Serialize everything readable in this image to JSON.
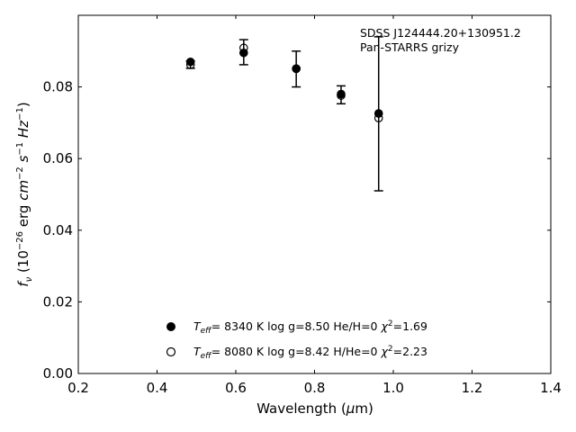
{
  "chart_data": {
    "type": "scatter",
    "xlabel": "Wavelength (μm)",
    "ylabel": "f_ν (10^-26 erg cm^-2 s^-1 Hz^-1)",
    "xlim": [
      0.2,
      1.4
    ],
    "ylim": [
      0.0,
      0.1
    ],
    "xticks": [
      0.2,
      0.4,
      0.6,
      0.8,
      1.0,
      1.2,
      1.4
    ],
    "xtick_labels": [
      "0.2",
      "0.4",
      "0.6",
      "0.8",
      "1.0",
      "1.2",
      "1.4"
    ],
    "yticks": [
      0.0,
      0.02,
      0.04,
      0.06,
      0.08
    ],
    "ytick_labels": [
      "0.00",
      "0.02",
      "0.04",
      "0.06",
      "0.08"
    ],
    "grid": false,
    "annotation": [
      "SDSS J124444.20+130951.2",
      "Pan-STARRS grizy"
    ],
    "observed": {
      "x": [
        0.4849,
        0.6201,
        0.7535,
        0.8674,
        0.9628
      ],
      "y": [
        0.0862,
        0.0897,
        0.085,
        0.0778,
        0.0725
      ],
      "yerr": [
        0.001,
        0.0035,
        0.005,
        0.0025,
        0.0215
      ]
    },
    "series": [
      {
        "name": "Teff= 8340 K log g=8.50 He/H=0 χ2=1.69",
        "marker": "filled-circle",
        "x": [
          0.4849,
          0.6201,
          0.7535,
          0.8674,
          0.9628
        ],
        "y": [
          0.087,
          0.0895,
          0.0851,
          0.078,
          0.0726
        ]
      },
      {
        "name": "Teff= 8080 K log g=8.42 H/He=0 χ2=2.23",
        "marker": "open-circle",
        "x": [
          0.4849,
          0.6201,
          0.7535,
          0.8674,
          0.9628
        ],
        "y": [
          0.0862,
          0.0909,
          0.0851,
          0.0776,
          0.0713
        ]
      }
    ],
    "legend": {
      "placement": "lower-center",
      "entries": [
        {
          "teff": "8340 K",
          "logg": "log g=8.50",
          "comp": "He/H=0",
          "chi": "=1.69"
        },
        {
          "teff": "8080 K",
          "logg": "log g=8.42",
          "comp": "H/He=0",
          "chi": "=2.23"
        }
      ]
    }
  }
}
